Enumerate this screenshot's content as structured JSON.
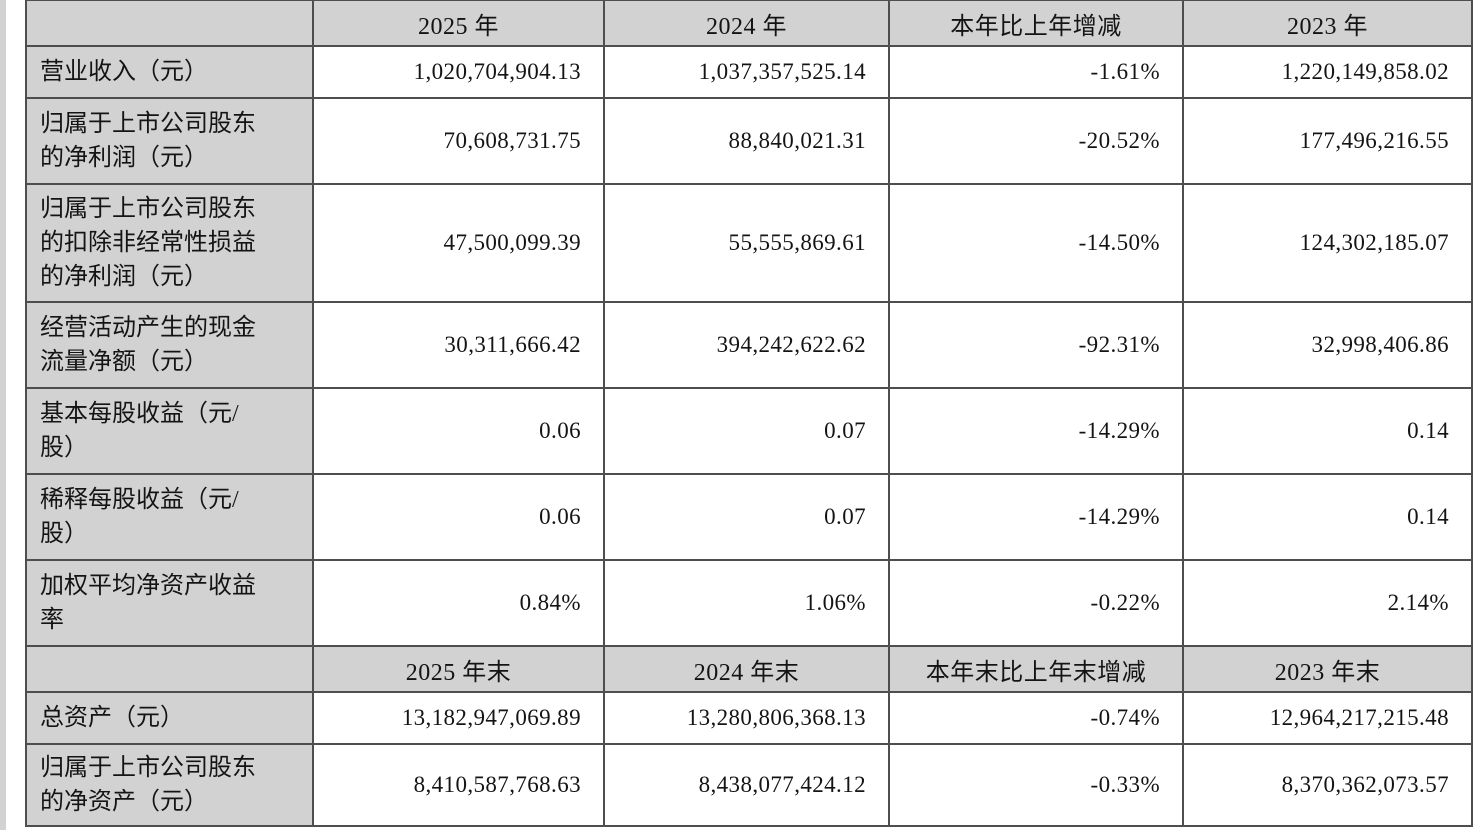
{
  "page": {
    "kind": "financial-report-key-figures-table",
    "background_color": "#ffffff"
  },
  "colors": {
    "header_and_label_cell_background": "#d2d2d2",
    "data_cell_background": "#ffffff",
    "border": "#4e4e4e",
    "text": "#141414"
  },
  "table": {
    "sections": [
      {
        "corner_label": "",
        "column_headers": [
          "2025 年",
          "2024 年",
          "本年比上年增减",
          "2023 年"
        ],
        "rows": [
          {
            "label": "营业收入（元）",
            "values": [
              "1,020,704,904.13",
              "1,037,357,525.14",
              "-1.61%",
              "1,220,149,858.02"
            ]
          },
          {
            "label": "归属于上市公司股东的净利润（元）",
            "values": [
              "70,608,731.75",
              "88,840,021.31",
              "-20.52%",
              "177,496,216.55"
            ]
          },
          {
            "label": "归属于上市公司股东的扣除非经常性损益的净利润（元）",
            "values": [
              "47,500,099.39",
              "55,555,869.61",
              "-14.50%",
              "124,302,185.07"
            ]
          },
          {
            "label": "经营活动产生的现金流量净额（元）",
            "values": [
              "30,311,666.42",
              "394,242,622.62",
              "-92.31%",
              "32,998,406.86"
            ]
          },
          {
            "label": "基本每股收益（元/股）",
            "values": [
              "0.06",
              "0.07",
              "-14.29%",
              "0.14"
            ]
          },
          {
            "label": "稀释每股收益（元/股）",
            "values": [
              "0.06",
              "0.07",
              "-14.29%",
              "0.14"
            ]
          },
          {
            "label": "加权平均净资产收益率",
            "values": [
              "0.84%",
              "1.06%",
              "-0.22%",
              "2.14%"
            ]
          }
        ]
      },
      {
        "corner_label": "",
        "column_headers": [
          "2025 年末",
          "2024 年末",
          "本年末比上年末增减",
          "2023 年末"
        ],
        "rows": [
          {
            "label": "总资产（元）",
            "values": [
              "13,182,947,069.89",
              "13,280,806,368.13",
              "-0.74%",
              "12,964,217,215.48"
            ]
          },
          {
            "label": "归属于上市公司股东的净资产（元）",
            "values": [
              "8,410,587,768.63",
              "8,438,077,424.12",
              "-0.33%",
              "8,370,362,073.57"
            ]
          }
        ]
      }
    ]
  }
}
